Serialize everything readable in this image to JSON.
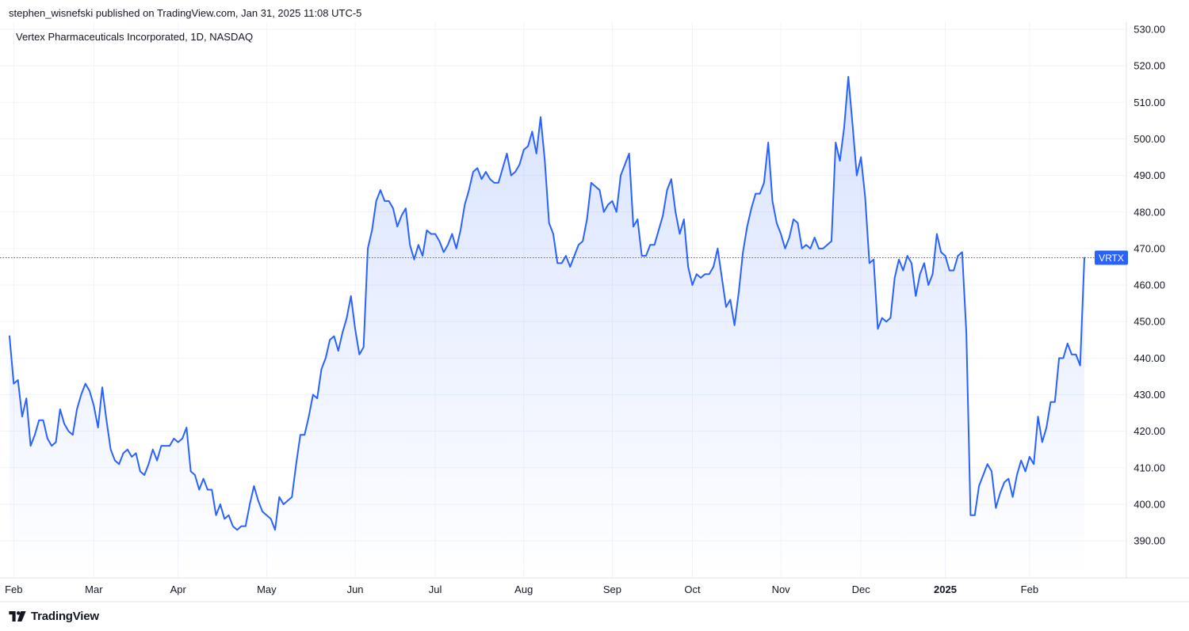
{
  "header": {
    "published_by": "stephen_wisnefski published on TradingView.com, Jan 31, 2025 11:08 UTC-5"
  },
  "brand": {
    "name": "TradingView",
    "logo_icon": "tradingview-logo-icon"
  },
  "chart_data": {
    "type": "area",
    "title": "Vertex Pharmaceuticals Incorporated, 1D, NASDAQ",
    "symbol_label": "VRTX",
    "last_value": 467.5,
    "ylim": [
      383,
      532
    ],
    "y_ticks": [
      {
        "value": 390,
        "label": "390.00"
      },
      {
        "value": 400,
        "label": "400.00"
      },
      {
        "value": 410,
        "label": "410.00"
      },
      {
        "value": 420,
        "label": "420.00"
      },
      {
        "value": 430,
        "label": "430.00"
      },
      {
        "value": 440,
        "label": "440.00"
      },
      {
        "value": 450,
        "label": "450.00"
      },
      {
        "value": 460,
        "label": "460.00"
      },
      {
        "value": 470,
        "label": "470.00"
      },
      {
        "value": 480,
        "label": "480.00"
      },
      {
        "value": 490,
        "label": "490.00"
      },
      {
        "value": 500,
        "label": "500.00"
      },
      {
        "value": 510,
        "label": "510.00"
      },
      {
        "value": 520,
        "label": "520.00"
      },
      {
        "value": 530,
        "label": "530.00"
      }
    ],
    "x_ticks": [
      {
        "index": 1,
        "label": "Feb",
        "bold": false
      },
      {
        "index": 20,
        "label": "Mar",
        "bold": false
      },
      {
        "index": 40,
        "label": "Apr",
        "bold": false
      },
      {
        "index": 61,
        "label": "May",
        "bold": false
      },
      {
        "index": 82,
        "label": "Jun",
        "bold": false
      },
      {
        "index": 101,
        "label": "Jul",
        "bold": false
      },
      {
        "index": 122,
        "label": "Aug",
        "bold": false
      },
      {
        "index": 143,
        "label": "Sep",
        "bold": false
      },
      {
        "index": 162,
        "label": "Oct",
        "bold": false
      },
      {
        "index": 183,
        "label": "Nov",
        "bold": false
      },
      {
        "index": 202,
        "label": "Dec",
        "bold": false
      },
      {
        "index": 222,
        "label": "2025",
        "bold": true
      },
      {
        "index": 242,
        "label": "Feb",
        "bold": false
      }
    ],
    "colors": {
      "line": "#2962ff",
      "fill_top": "#2962ff",
      "grid": "#f0f3fa",
      "label_bg": "#2962ff"
    },
    "grid": true,
    "series": [
      {
        "values": [
          446,
          433,
          434,
          424,
          429,
          416,
          419,
          423,
          423,
          418,
          416,
          417,
          426,
          422,
          420,
          419,
          426,
          430,
          433,
          431,
          427,
          421,
          432,
          423,
          415,
          412,
          411,
          414,
          415,
          413,
          414,
          409,
          408,
          411,
          415,
          412,
          416,
          416,
          416,
          418,
          417,
          418,
          421,
          409,
          408,
          404,
          407,
          404,
          404,
          397,
          400,
          396,
          397,
          394,
          393,
          394,
          394,
          400,
          405,
          401,
          398,
          397,
          396,
          393,
          402,
          400,
          401,
          402,
          411,
          419,
          419,
          424,
          430,
          429,
          437,
          440,
          445,
          446,
          442,
          447,
          451,
          457,
          448,
          441,
          443,
          470,
          475,
          483,
          486,
          483,
          483,
          481,
          476,
          479,
          481,
          471,
          467,
          471,
          468,
          475,
          474,
          474,
          472,
          469,
          471,
          474,
          470,
          475,
          482,
          486,
          491,
          492,
          489,
          491,
          489,
          488,
          488,
          492,
          496,
          490,
          491,
          493,
          497,
          498,
          502,
          496,
          506,
          494,
          477,
          474,
          466,
          466,
          468,
          465,
          468,
          471,
          472,
          478,
          488,
          487,
          486,
          480,
          482,
          483,
          480,
          490,
          493,
          496,
          476,
          478,
          468,
          468,
          471,
          471,
          475,
          479,
          486,
          489,
          480,
          474,
          478,
          465,
          460,
          463,
          462,
          463,
          463,
          465,
          470,
          462,
          454,
          456,
          449,
          458,
          469,
          476,
          481,
          485,
          485,
          488,
          499,
          483,
          477,
          474,
          470,
          473,
          478,
          477,
          470,
          471,
          470,
          473,
          470,
          470,
          471,
          472,
          499,
          494,
          503,
          517,
          504,
          490,
          495,
          484,
          466,
          467,
          448,
          451,
          450,
          451,
          462,
          467,
          464,
          468,
          466,
          457,
          463,
          466,
          460,
          463,
          474,
          469,
          468,
          464,
          464,
          468,
          469,
          447,
          397,
          397,
          405,
          408,
          411,
          409,
          399,
          403,
          406,
          407,
          402,
          408,
          412,
          409,
          413,
          411,
          424,
          417,
          421,
          428,
          428,
          440,
          440,
          444,
          441,
          441,
          438,
          467.5
        ]
      }
    ]
  }
}
